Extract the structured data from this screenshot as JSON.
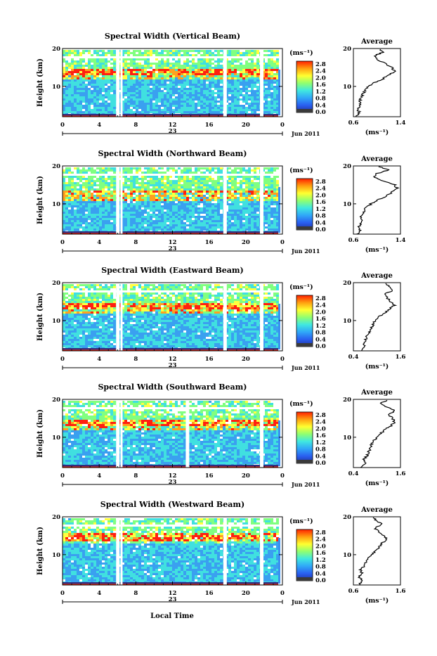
{
  "figure": {
    "xlabel": "Local Time",
    "ylabel": "Height (km)",
    "date_label": "Jun 2011",
    "day_label": "23",
    "colorbar_unit": "(ms⁻¹)",
    "colorbar_ticks": [
      "2.8",
      "2.4",
      "2.0",
      "1.6",
      "1.2",
      "0.8",
      "0.4",
      "0.0"
    ],
    "average_title": "Average",
    "average_xlabel": "(ms⁻¹)",
    "colors": {
      "scale": [
        "#1a1a8c",
        "#2a50e0",
        "#3aa0f0",
        "#40e0e0",
        "#80ff80",
        "#ffff40",
        "#ffa020",
        "#ff2010"
      ],
      "missing": "#ffffff",
      "bottom_band": "#303080"
    }
  },
  "chart_data": [
    {
      "type": "heatmap",
      "title": "Spectral Width (Vertical Beam)",
      "x_ticks": [
        "0",
        "4",
        "8",
        "12",
        "16",
        "20",
        "0"
      ],
      "y_ticks": [
        "20",
        "10"
      ],
      "xlim": [
        0,
        24
      ],
      "ylim": [
        2,
        20
      ],
      "clim": [
        0.0,
        3.0
      ],
      "gaps_hours": [
        6.0,
        17.7,
        21.7
      ],
      "enhanced_layer_km": [
        12,
        15
      ],
      "average": {
        "x_ticks": [
          "0.6",
          "1.4"
        ],
        "y_ticks": [
          "20",
          "10"
        ],
        "xlim": [
          0.6,
          1.4
        ],
        "height_km": [
          2,
          3,
          4,
          5,
          6,
          7,
          8,
          9,
          10,
          11,
          12,
          13,
          14,
          15,
          16,
          17,
          18,
          19,
          20
        ],
        "value": [
          0.65,
          0.7,
          0.68,
          0.72,
          0.7,
          0.74,
          0.76,
          0.8,
          0.85,
          0.95,
          1.1,
          1.2,
          1.3,
          1.25,
          1.15,
          1.0,
          0.95,
          1.1,
          1.05
        ]
      }
    },
    {
      "type": "heatmap",
      "title": "Spectral Width (Northward Beam)",
      "x_ticks": [
        "0",
        "4",
        "8",
        "12",
        "16",
        "20",
        "0"
      ],
      "y_ticks": [
        "20",
        "10"
      ],
      "xlim": [
        0,
        24
      ],
      "ylim": [
        2,
        20
      ],
      "clim": [
        0.0,
        3.0
      ],
      "gaps_hours": [
        6.0,
        17.7,
        21.7
      ],
      "enhanced_layer_km": [
        11,
        14
      ],
      "average": {
        "x_ticks": [
          "0.6",
          "1.4"
        ],
        "y_ticks": [
          "20",
          "10"
        ],
        "xlim": [
          0.6,
          1.4
        ],
        "height_km": [
          2,
          3,
          4,
          5,
          6,
          7,
          8,
          9,
          10,
          11,
          12,
          13,
          14,
          15,
          16,
          17,
          18,
          19,
          20
        ],
        "value": [
          0.66,
          0.72,
          0.7,
          0.74,
          0.72,
          0.75,
          0.78,
          0.82,
          0.9,
          1.0,
          1.15,
          1.25,
          1.35,
          1.3,
          1.1,
          0.95,
          1.0,
          1.2,
          1.0
        ]
      }
    },
    {
      "type": "heatmap",
      "title": "Spectral Width (Eastward Beam)",
      "x_ticks": [
        "0",
        "4",
        "8",
        "12",
        "16",
        "20",
        "0"
      ],
      "y_ticks": [
        "20",
        "10"
      ],
      "xlim": [
        0,
        24
      ],
      "ylim": [
        2,
        20
      ],
      "clim": [
        0.0,
        3.0
      ],
      "gaps_hours": [
        6.0,
        17.7,
        21.7
      ],
      "enhanced_layer_km": [
        12,
        15
      ],
      "average": {
        "x_ticks": [
          "0.4",
          "1.6"
        ],
        "y_ticks": [
          "20",
          "10"
        ],
        "xlim": [
          0.4,
          1.6
        ],
        "height_km": [
          2,
          3,
          4,
          5,
          6,
          7,
          8,
          9,
          10,
          11,
          12,
          13,
          14,
          15,
          16,
          17,
          18,
          19,
          20
        ],
        "value": [
          0.6,
          0.7,
          0.65,
          0.72,
          0.75,
          0.8,
          0.85,
          0.9,
          0.95,
          1.05,
          1.2,
          1.3,
          1.45,
          1.35,
          1.25,
          1.2,
          1.4,
          1.3,
          1.2
        ]
      }
    },
    {
      "type": "heatmap",
      "title": "Spectral Width (Southward Beam)",
      "x_ticks": [
        "0",
        "4",
        "8",
        "12",
        "16",
        "20",
        "0"
      ],
      "y_ticks": [
        "20",
        "10"
      ],
      "xlim": [
        0,
        24
      ],
      "ylim": [
        2,
        20
      ],
      "clim": [
        0.0,
        3.0
      ],
      "gaps_hours": [
        6.0,
        13.6,
        21.7
      ],
      "enhanced_layer_km": [
        12,
        15
      ],
      "average": {
        "x_ticks": [
          "0.4",
          "1.6"
        ],
        "y_ticks": [
          "20",
          "10"
        ],
        "xlim": [
          0.4,
          1.6
        ],
        "height_km": [
          2,
          3,
          4,
          5,
          6,
          7,
          8,
          9,
          10,
          11,
          12,
          13,
          14,
          15,
          16,
          17,
          18,
          19,
          20
        ],
        "value": [
          0.62,
          0.7,
          0.66,
          0.74,
          0.78,
          0.82,
          0.86,
          0.92,
          1.0,
          1.1,
          1.2,
          1.35,
          1.45,
          1.4,
          1.3,
          1.45,
          1.25,
          1.1,
          1.3
        ]
      }
    },
    {
      "type": "heatmap",
      "title": "Spectral Width (Westward Beam)",
      "x_ticks": [
        "0",
        "4",
        "8",
        "12",
        "16",
        "20",
        "0"
      ],
      "y_ticks": [
        "20",
        "10"
      ],
      "xlim": [
        0,
        24
      ],
      "ylim": [
        2,
        20
      ],
      "clim": [
        0.0,
        3.0
      ],
      "gaps_hours": [
        6.0,
        17.7,
        21.7
      ],
      "enhanced_layer_km": [
        14,
        16
      ],
      "average": {
        "x_ticks": [
          "0.6",
          "1.6"
        ],
        "y_ticks": [
          "20",
          "10"
        ],
        "xlim": [
          0.6,
          1.6
        ],
        "height_km": [
          2,
          3,
          4,
          5,
          6,
          7,
          8,
          9,
          10,
          11,
          12,
          13,
          14,
          15,
          16,
          17,
          18,
          19,
          20
        ],
        "value": [
          0.7,
          0.8,
          0.72,
          0.78,
          0.76,
          0.82,
          0.86,
          0.9,
          1.0,
          1.05,
          1.15,
          1.2,
          1.3,
          1.25,
          1.15,
          1.05,
          1.2,
          1.1,
          1.0
        ]
      }
    }
  ]
}
